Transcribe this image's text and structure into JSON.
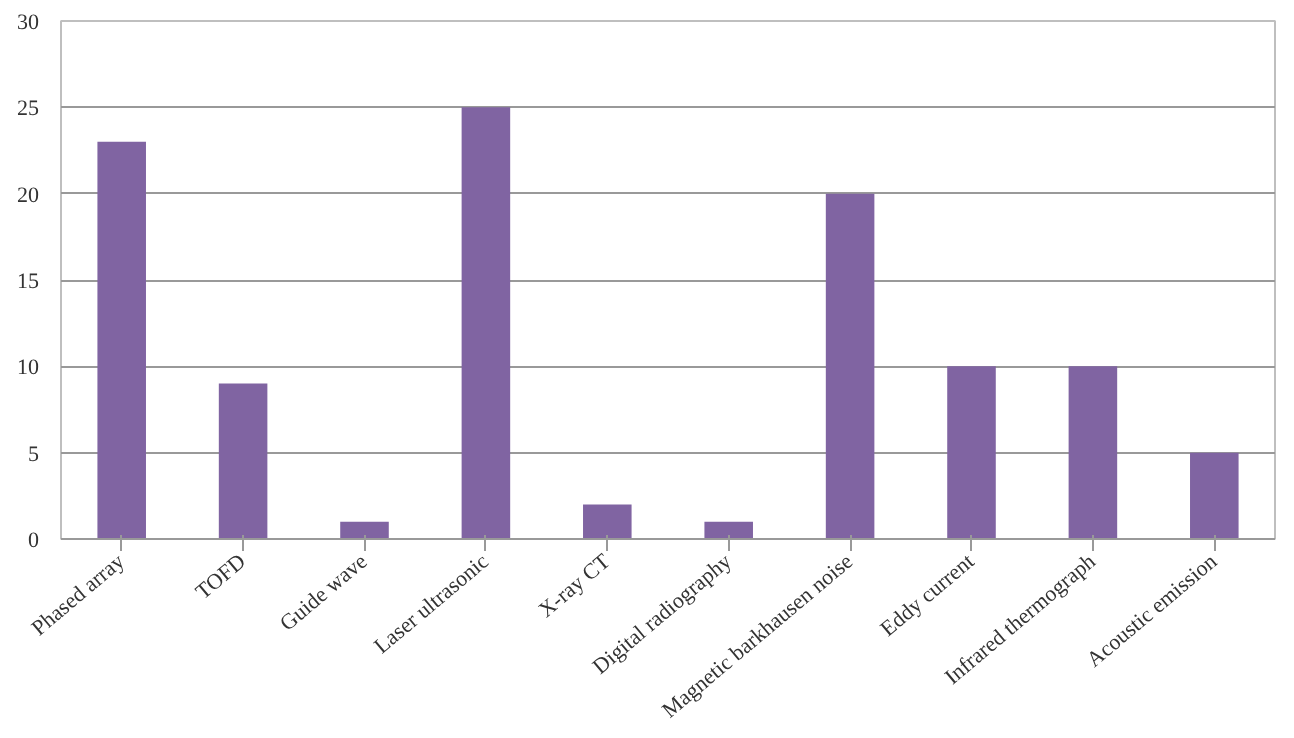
{
  "chart_data": {
    "type": "bar",
    "categories": [
      "Phased array",
      "TOFD",
      "Guide wave",
      "Laser ultrasonic",
      "X-ray CT",
      "Digital radiography",
      "Magnetic barkhausen noise",
      "Eddy current",
      "Infrared thermograph",
      "Acoustic emission"
    ],
    "values": [
      23,
      9,
      1,
      25,
      2,
      1,
      20,
      10,
      10,
      5
    ],
    "color": "#8064a2",
    "ylim": [
      0,
      30
    ],
    "yticks": [
      0,
      5,
      10,
      15,
      20,
      25,
      30
    ],
    "grid": "y"
  }
}
